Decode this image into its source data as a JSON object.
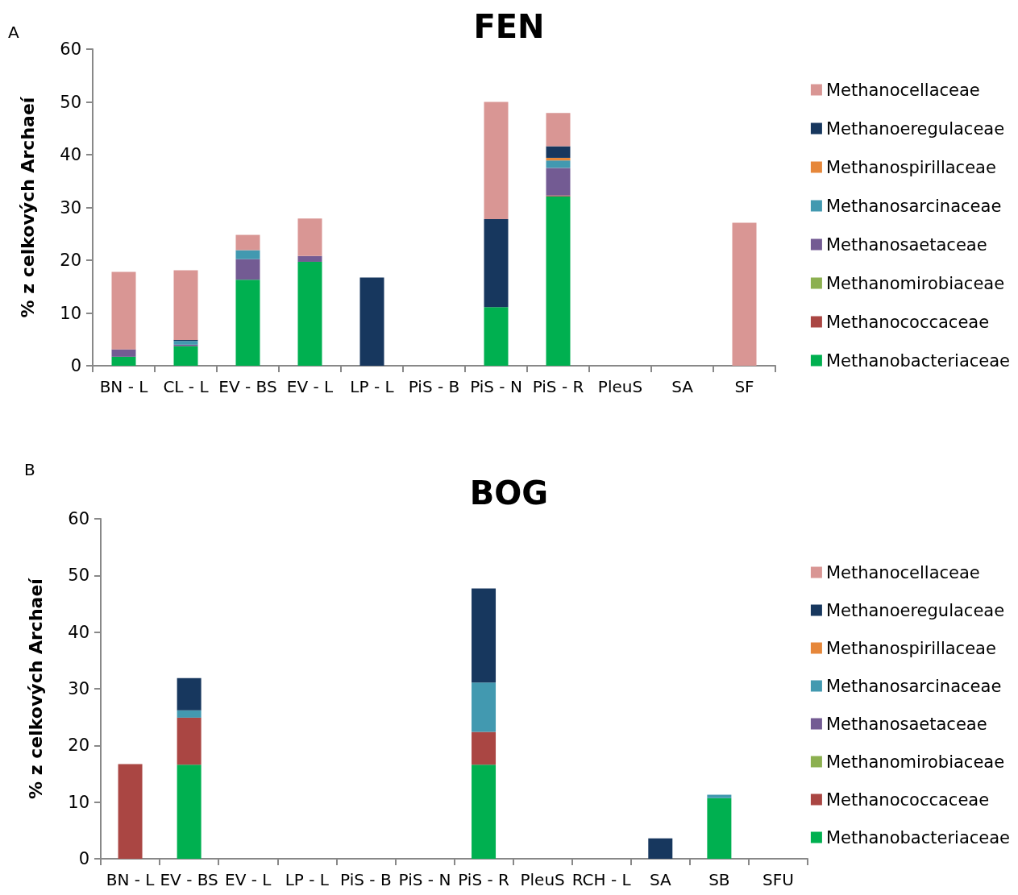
{
  "chart_data": [
    {
      "type": "bar",
      "title": "FEN",
      "ylabel": "% z celkových Archaeí",
      "annotations": [
        "A"
      ],
      "stacked": true,
      "legend": "right",
      "grid": false,
      "categories": [
        "BN - L",
        "CL - L",
        "EV - BS",
        "EV - L",
        "LP - L",
        "PiS - B",
        "PiS - N",
        "PiS - R",
        "PleuS",
        "SA",
        "SF"
      ],
      "ylim": [
        0,
        60
      ],
      "yticks": [
        0,
        10,
        20,
        30,
        40,
        50,
        60
      ],
      "series": [
        {
          "name": "Methanobacteriaceae",
          "color": "#00b050",
          "values": [
            1.7,
            3.7,
            16.3,
            19.7,
            0,
            0,
            11.1,
            32.1,
            0,
            0,
            0
          ]
        },
        {
          "name": "Methanococcaceae",
          "color": "#aa4643",
          "values": [
            0,
            0,
            0,
            0,
            0,
            0,
            0,
            0.2,
            0,
            0,
            0
          ]
        },
        {
          "name": "Methanomirobiaceae",
          "color": "#8cb050",
          "values": [
            0,
            0,
            0,
            0,
            0,
            0,
            0,
            0,
            0,
            0,
            0
          ]
        },
        {
          "name": "Methanosaetaceae",
          "color": "#735b93",
          "values": [
            1.4,
            0.3,
            3.9,
            1.1,
            0,
            0,
            0,
            5.2,
            0,
            0,
            0
          ]
        },
        {
          "name": "Methanosarcinaceae",
          "color": "#4299b0",
          "values": [
            0,
            0.7,
            1.7,
            0,
            0,
            0,
            0,
            1.4,
            0,
            0,
            0
          ]
        },
        {
          "name": "Methanospirillaceae",
          "color": "#e6873a",
          "values": [
            0,
            0,
            0,
            0,
            0,
            0,
            0,
            0.5,
            0,
            0,
            0
          ]
        },
        {
          "name": "Methanoeregulaceae",
          "color": "#17375e",
          "values": [
            0,
            0.2,
            0,
            0,
            16.7,
            0,
            16.7,
            2.2,
            0,
            0,
            0
          ]
        },
        {
          "name": "Methanocellaceae",
          "color": "#d99694",
          "values": [
            14.7,
            13.2,
            2.9,
            7.1,
            0,
            0,
            22.2,
            6.3,
            0,
            0,
            27.1
          ]
        }
      ]
    },
    {
      "type": "bar",
      "title": "BOG",
      "ylabel": "% z celkových Archaeí",
      "annotations": [
        "B"
      ],
      "stacked": true,
      "legend": "right",
      "grid": false,
      "categories": [
        "BN - L",
        "EV - BS",
        "EV - L",
        "LP - L",
        "PiS - B",
        "PiS - N",
        "PiS - R",
        "PleuS",
        "RCH - L",
        "SA",
        "SB",
        "SFU"
      ],
      "ylim": [
        0,
        60
      ],
      "yticks": [
        0,
        10,
        20,
        30,
        40,
        50,
        60
      ],
      "series": [
        {
          "name": "Methanobacteriaceae",
          "color": "#00b050",
          "values": [
            0,
            16.6,
            0,
            0,
            0,
            0,
            16.6,
            0,
            0,
            0,
            10.7,
            0
          ]
        },
        {
          "name": "Methanococcaceae",
          "color": "#aa4643",
          "values": [
            16.7,
            8.3,
            0,
            0,
            0,
            0,
            5.8,
            0,
            0,
            0,
            0,
            0
          ]
        },
        {
          "name": "Methanomirobiaceae",
          "color": "#8cb050",
          "values": [
            0,
            0,
            0,
            0,
            0,
            0,
            0,
            0,
            0,
            0,
            0,
            0
          ]
        },
        {
          "name": "Methanosaetaceae",
          "color": "#735b93",
          "values": [
            0,
            0,
            0,
            0,
            0,
            0,
            0,
            0,
            0,
            0,
            0,
            0
          ]
        },
        {
          "name": "Methanosarcinaceae",
          "color": "#4299b0",
          "values": [
            0,
            1.3,
            0,
            0,
            0,
            0,
            8.7,
            0,
            0,
            0,
            0.6,
            0
          ]
        },
        {
          "name": "Methanospirillaceae",
          "color": "#e6873a",
          "values": [
            0,
            0,
            0,
            0,
            0,
            0,
            0,
            0,
            0,
            0,
            0,
            0
          ]
        },
        {
          "name": "Methanoeregulaceae",
          "color": "#17375e",
          "values": [
            0,
            5.7,
            0,
            0,
            0,
            0,
            16.6,
            0,
            0,
            3.6,
            0,
            0
          ]
        },
        {
          "name": "Methanocellaceae",
          "color": "#d99694",
          "values": [
            0,
            0,
            0,
            0,
            0,
            0,
            0,
            0,
            0,
            0,
            0,
            0
          ]
        }
      ]
    }
  ]
}
